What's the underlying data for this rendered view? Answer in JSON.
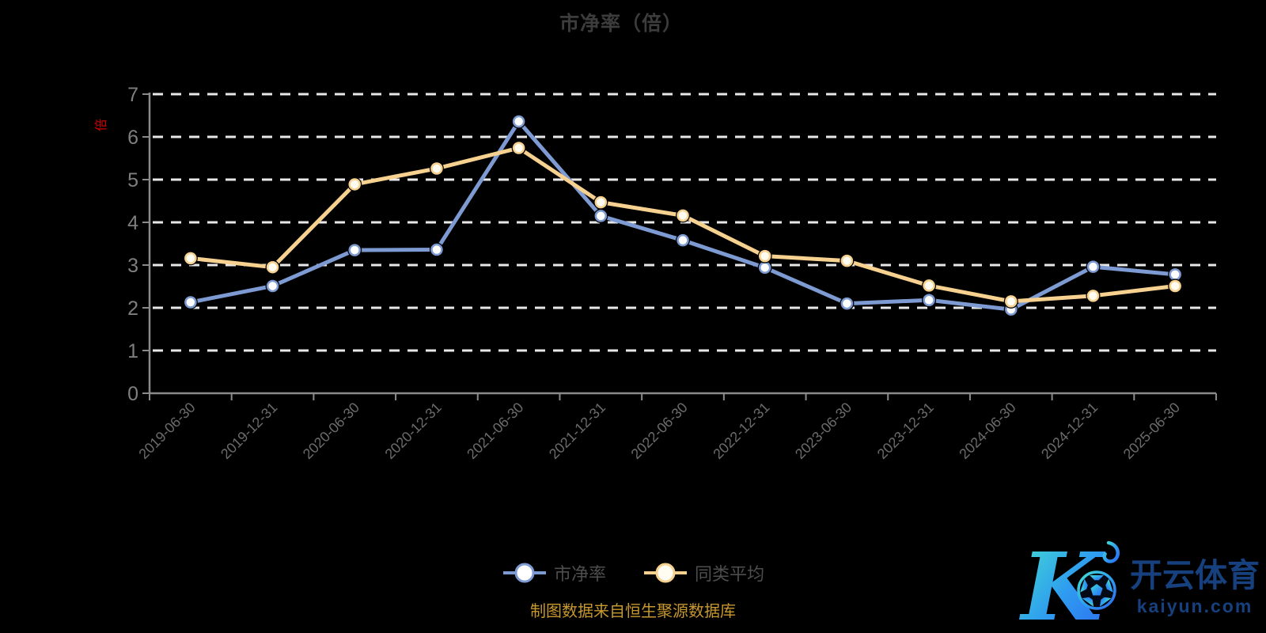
{
  "title": {
    "text": "市净率（倍）"
  },
  "chart_data": {
    "type": "line",
    "title": "市净率（倍）",
    "categories": [
      "2019-06-30",
      "2019-12-31",
      "2020-06-30",
      "2020-12-31",
      "2021-06-30",
      "2021-12-31",
      "2022-06-30",
      "2022-12-31",
      "2023-06-30",
      "2023-12-31",
      "2024-06-30",
      "2024-12-31",
      "2025-06-30"
    ],
    "series": [
      {
        "name": "市净率",
        "color": "#7d9bd2",
        "marker_fill": "#ffffff",
        "values": [
          2.13,
          2.51,
          3.35,
          3.36,
          6.36,
          4.15,
          3.58,
          2.94,
          2.1,
          2.18,
          1.96,
          2.96,
          2.78
        ]
      },
      {
        "name": "同类平均",
        "color": "#f6d18f",
        "marker_fill": "#fffdf2",
        "values": [
          3.16,
          2.95,
          4.89,
          5.26,
          5.74,
          4.47,
          4.16,
          3.21,
          3.1,
          2.52,
          2.15,
          2.28,
          2.51
        ]
      }
    ],
    "xlabel": "",
    "ylabel": "倍",
    "ylabel_color": "#cc0000",
    "ylim": [
      0,
      7
    ],
    "y_ticks": [
      0,
      1,
      2,
      3,
      4,
      5,
      6,
      7
    ],
    "grid": "horizontal-dashed-white",
    "legend_position": "bottom-center"
  },
  "legend": {
    "items": [
      {
        "label": "市净率"
      },
      {
        "label": "同类平均"
      }
    ]
  },
  "source": {
    "text": "制图数据来自恒生聚源数据库",
    "color": "#c7982d"
  },
  "logo": {
    "k_letter": "K",
    "brand_cn": "开云体育",
    "domain": "kaiyun.com"
  },
  "colors": {
    "background": "#000000",
    "title_text": "#3c3c3c",
    "axis_line": "#8a8a8a",
    "y_tick_label": "#7f7f7f",
    "x_tick_label": "#6b6b6b",
    "grid_line": "#e8e8e8",
    "legend_text": "#4e4e4e",
    "series_pb": "#7d9bd2",
    "series_avg": "#f6d18f",
    "source_text": "#c7982d",
    "logo_gradient_start": "#45e0cf",
    "logo_gradient_end": "#2e7bf0",
    "logo_text": "#17407e"
  }
}
